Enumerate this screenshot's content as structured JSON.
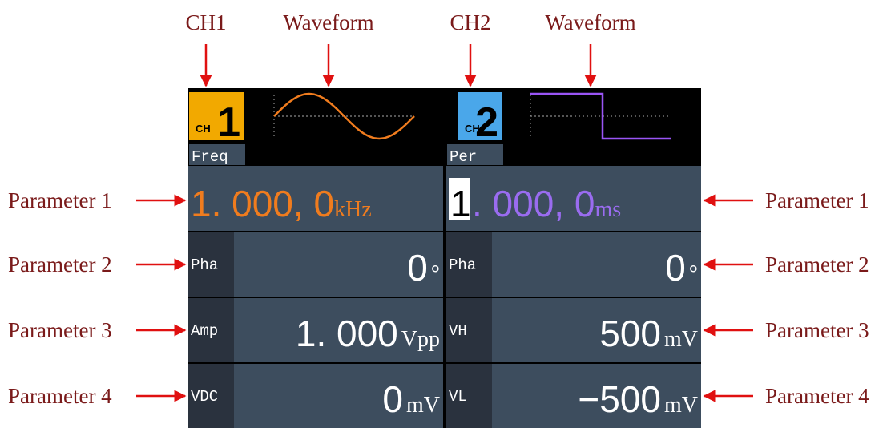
{
  "annotations": {
    "top": [
      "CH1",
      "Waveform",
      "CH2",
      "Waveform"
    ],
    "left": [
      "Parameter 1",
      "Parameter 2",
      "Parameter 3",
      "Parameter 4"
    ],
    "right": [
      "Parameter 1",
      "Parameter 2",
      "Parameter 3",
      "Parameter 4"
    ]
  },
  "channels": [
    {
      "badge_label": "CH",
      "badge_number": "1",
      "tab": "Freq",
      "main_value": "1. 000, 0",
      "main_unit": "kHz",
      "parameters": [
        {
          "label": "Pha",
          "value": "0",
          "unit": "°"
        },
        {
          "label": "Amp",
          "value": "1. 000",
          "unit": "Vpp"
        },
        {
          "label": "VDC",
          "value": "0",
          "unit": "mV"
        }
      ]
    },
    {
      "badge_label": "CH",
      "badge_number": "2",
      "tab": "Per",
      "main_cursor": "1",
      "main_value": ". 000, 0",
      "main_unit": "ms",
      "parameters": [
        {
          "label": "Pha",
          "value": "0",
          "unit": "°"
        },
        {
          "label": "VH",
          "value": "500",
          "unit": "mV"
        },
        {
          "label": "VL",
          "value": "−500",
          "unit": "mV"
        }
      ]
    }
  ]
}
